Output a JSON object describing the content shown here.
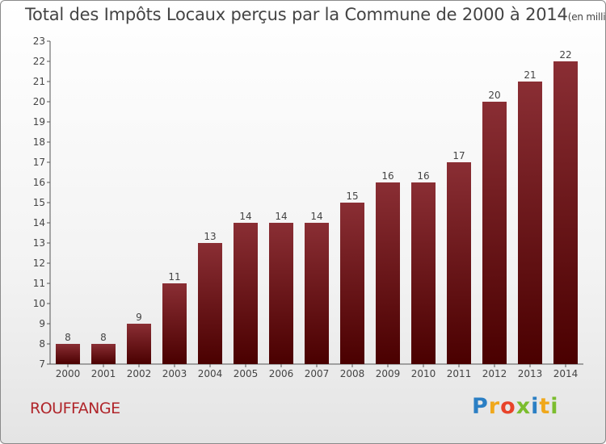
{
  "title": "Total des Impôts Locaux perçus par la Commune de 2000 à 2014",
  "title_unit": "(en milliers d'€)",
  "commune": "ROUFFANGE",
  "logo": {
    "letters": [
      "P",
      "r",
      "o",
      "x",
      "i",
      "t",
      "i"
    ],
    "colors": [
      "#2b7fc4",
      "#f0a81c",
      "#e8432a",
      "#7bbd2e",
      "#2b7fc4",
      "#f0a81c",
      "#7bbd2e"
    ]
  },
  "colors": {
    "bar_top": "#8a2e34",
    "bar_bottom": "#4a0000",
    "commune_text": "#b0252a"
  },
  "chart_data": {
    "type": "bar",
    "categories": [
      "2000",
      "2001",
      "2002",
      "2003",
      "2004",
      "2005",
      "2006",
      "2007",
      "2008",
      "2009",
      "2010",
      "2011",
      "2012",
      "2013",
      "2014"
    ],
    "values": [
      8,
      8,
      9,
      11,
      13,
      14,
      14,
      14,
      15,
      16,
      16,
      17,
      20,
      21,
      22
    ],
    "data_labels": [
      "8",
      "8",
      "9",
      "11",
      "13",
      "14",
      "14",
      "14",
      "15",
      "16",
      "16",
      "17",
      "20",
      "21",
      "22"
    ],
    "yticks": [
      "7",
      "8",
      "9",
      "10",
      "11",
      "12",
      "13",
      "14",
      "15",
      "16",
      "17",
      "18",
      "19",
      "20",
      "21",
      "22",
      "23"
    ],
    "ylim": [
      7,
      23
    ],
    "xlabel": "",
    "ylabel": "",
    "grid": false
  }
}
